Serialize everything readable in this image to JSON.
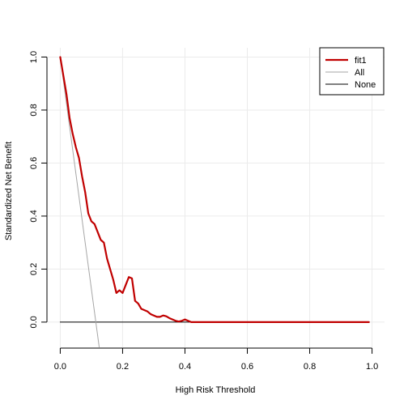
{
  "chart_data": {
    "type": "line",
    "xlabel": "High Risk Threshold",
    "ylabel": "Standardized Net Benefit",
    "xlim": [
      -0.04,
      1.04
    ],
    "ylim": [
      -0.095,
      1.035
    ],
    "xticks": [
      0.0,
      0.2,
      0.4,
      0.6,
      0.8,
      1.0
    ],
    "xtick_labels": [
      "0.0",
      "0.2",
      "0.4",
      "0.6",
      "0.8",
      "1.0"
    ],
    "yticks": [
      0.0,
      0.2,
      0.4,
      0.6,
      0.8,
      1.0
    ],
    "ytick_labels": [
      "0.0",
      "0.2",
      "0.4",
      "0.6",
      "0.8",
      "1.0"
    ],
    "grid": true,
    "legend_position": "top-right",
    "series": [
      {
        "name": "fit1",
        "color": "#c00000",
        "x": [
          0.0,
          0.01,
          0.02,
          0.03,
          0.04,
          0.05,
          0.06,
          0.07,
          0.08,
          0.09,
          0.1,
          0.11,
          0.12,
          0.13,
          0.14,
          0.15,
          0.16,
          0.17,
          0.18,
          0.19,
          0.2,
          0.21,
          0.22,
          0.23,
          0.24,
          0.25,
          0.26,
          0.27,
          0.28,
          0.29,
          0.3,
          0.31,
          0.32,
          0.33,
          0.34,
          0.35,
          0.36,
          0.37,
          0.38,
          0.39,
          0.4,
          0.41,
          0.42,
          0.43,
          0.44,
          0.45,
          0.5,
          0.6,
          0.7,
          0.8,
          0.9,
          0.99
        ],
        "y": [
          1.0,
          0.93,
          0.86,
          0.77,
          0.71,
          0.66,
          0.62,
          0.55,
          0.49,
          0.41,
          0.38,
          0.37,
          0.34,
          0.31,
          0.3,
          0.24,
          0.2,
          0.16,
          0.11,
          0.12,
          0.11,
          0.14,
          0.17,
          0.165,
          0.08,
          0.07,
          0.05,
          0.045,
          0.04,
          0.03,
          0.025,
          0.02,
          0.02,
          0.025,
          0.022,
          0.015,
          0.01,
          0.005,
          0.002,
          0.005,
          0.01,
          0.005,
          0.0,
          0.0,
          0.0,
          0.0,
          0.0,
          0.0,
          0.0,
          0.0,
          0.0,
          0.0
        ],
        "width": 2.2
      },
      {
        "name": "All",
        "color": "#a6a6a6",
        "x": [
          0.0,
          0.125
        ],
        "y": [
          1.0,
          -0.095
        ],
        "width": 1
      },
      {
        "name": "None",
        "color": "#000000",
        "x": [
          0.0,
          0.99
        ],
        "y": [
          0.0,
          0.0
        ],
        "width": 1
      }
    ]
  }
}
